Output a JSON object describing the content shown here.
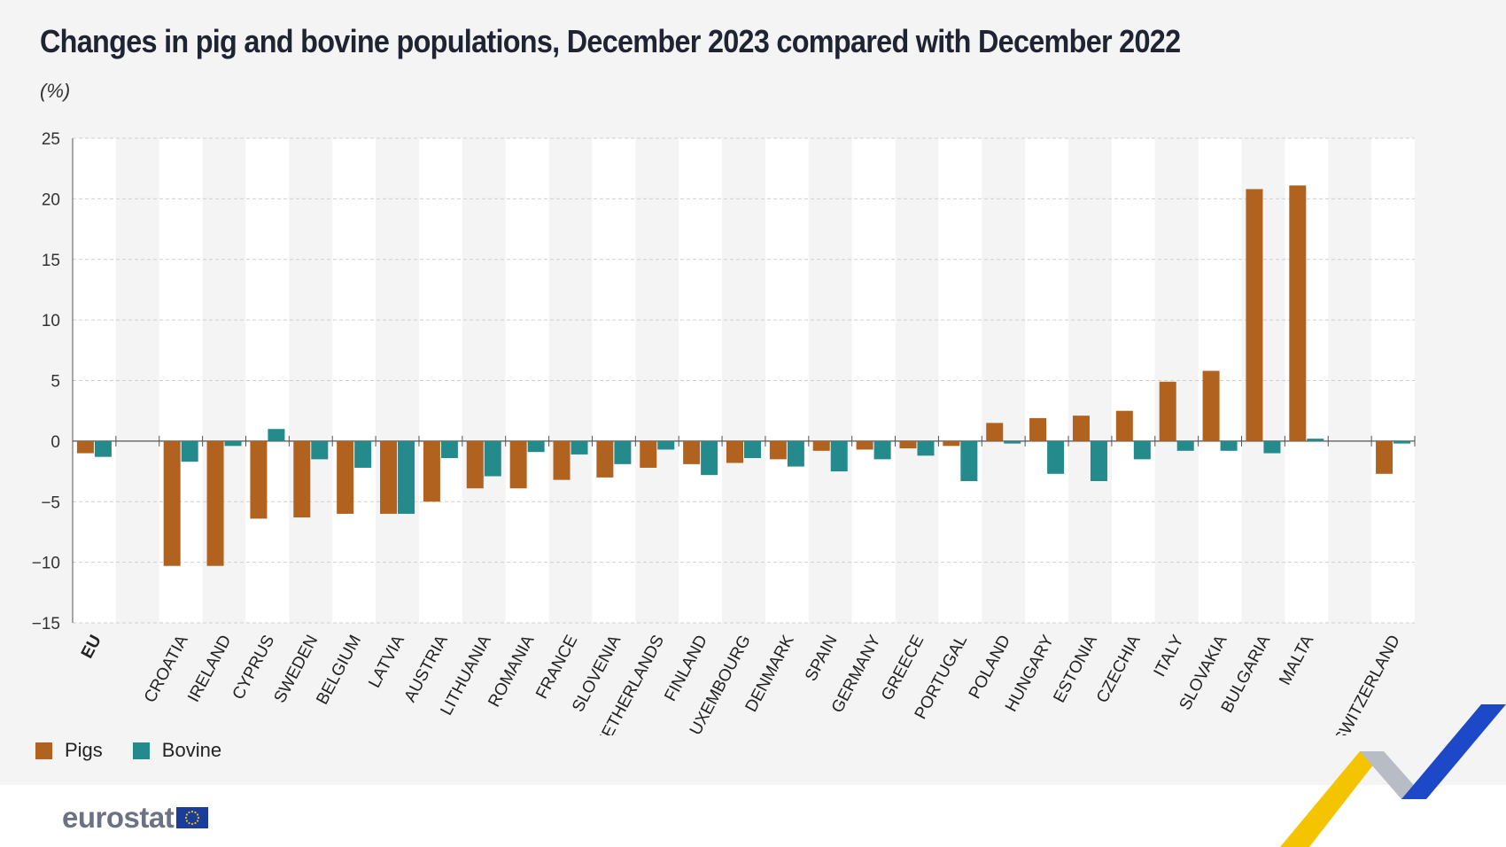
{
  "title": "Changes in pig and bovine populations, December 2023 compared with December 2022",
  "unit_label": "(%)",
  "logo_text": "eurostat",
  "colors": {
    "pigs": "#b0621e",
    "bovine": "#258a8c",
    "band_light": "#ffffff",
    "band_dark": "#f4f4f4",
    "grid": "#cfcfcf",
    "footer": "#ffffff",
    "flag": "#1a3d9c",
    "deco_yellow": "#f4c400",
    "deco_grey": "#b8bcc4",
    "deco_blue": "#1d49c8"
  },
  "legend": [
    {
      "label": "Pigs",
      "series": "pigs"
    },
    {
      "label": "Bovine",
      "series": "bovine"
    }
  ],
  "chart_data": {
    "type": "bar",
    "title": "Changes in pig and bovine populations, December 2023 compared with December 2022",
    "ylabel": "(%)",
    "ylim": [
      -15,
      25
    ],
    "yticks": [
      25,
      20,
      15,
      10,
      5,
      0,
      -5,
      -10,
      -15
    ],
    "grid": true,
    "legend_position": "bottom-left",
    "categories": [
      "EU",
      "",
      "CROATIA",
      "IRELAND",
      "CYPRUS",
      "SWEDEN",
      "BELGIUM",
      "LATVIA",
      "AUSTRIA",
      "LITHUANIA",
      "ROMANIA",
      "FRANCE",
      "SLOVENIA",
      "NETHERLANDS",
      "FINLAND",
      "LUXEMBOURG",
      "DENMARK",
      "SPAIN",
      "GERMANY",
      "GREECE",
      "PORTUGAL",
      "POLAND",
      "HUNGARY",
      "ESTONIA",
      "CZECHIA",
      "ITALY",
      "SLOVAKIA",
      "BULGARIA",
      "MALTA",
      "",
      "SWITZERLAND"
    ],
    "bold_categories": [
      "EU"
    ],
    "series": [
      {
        "name": "Pigs",
        "key": "pigs",
        "values": [
          -1.0,
          null,
          -10.3,
          -10.3,
          -6.4,
          -6.3,
          -6.0,
          -6.0,
          -5.0,
          -3.9,
          -3.9,
          -3.2,
          -3.0,
          -2.2,
          -1.9,
          -1.8,
          -1.5,
          -0.8,
          -0.7,
          -0.6,
          -0.4,
          1.5,
          1.9,
          2.1,
          2.5,
          4.9,
          5.8,
          20.8,
          21.1,
          null,
          -2.7
        ]
      },
      {
        "name": "Bovine",
        "key": "bovine",
        "values": [
          -1.3,
          null,
          -1.7,
          -0.4,
          1.0,
          -1.5,
          -2.2,
          -6.0,
          -1.4,
          -2.9,
          -0.9,
          -1.1,
          -1.9,
          -0.7,
          -2.8,
          -1.4,
          -2.1,
          -2.5,
          -1.5,
          -1.2,
          -3.3,
          -0.2,
          -2.7,
          -3.3,
          -1.5,
          -0.8,
          -0.8,
          -1.0,
          0.2,
          null,
          -0.2
        ]
      }
    ]
  }
}
